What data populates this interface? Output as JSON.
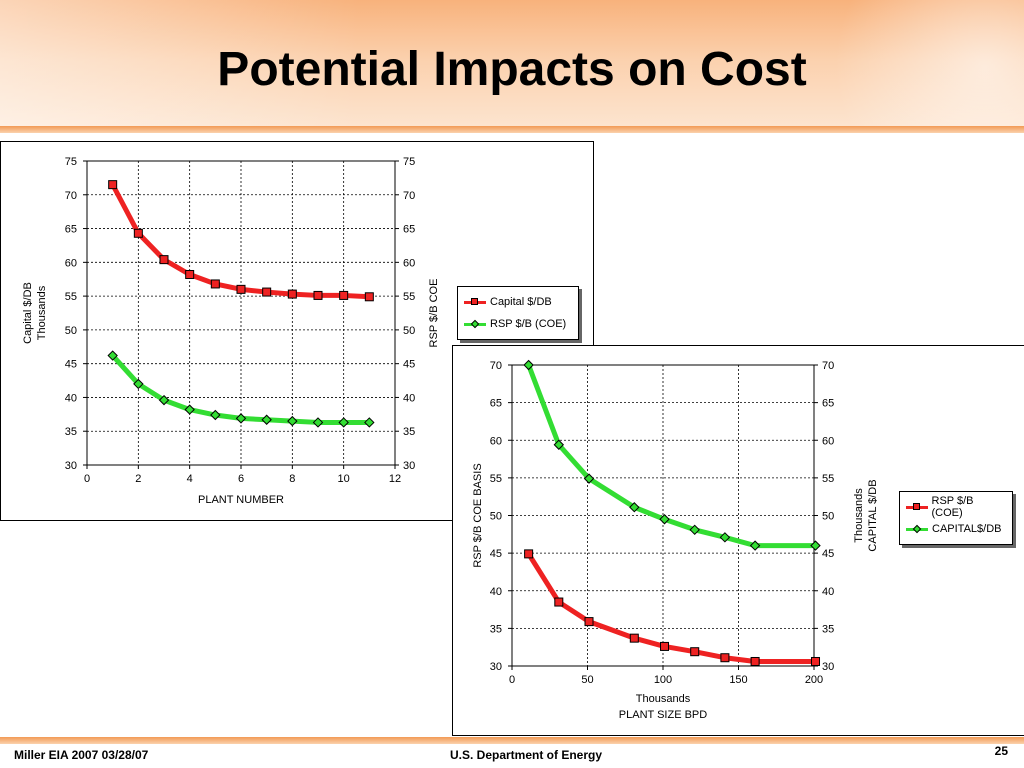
{
  "slide": {
    "title": "Potential Impacts on Cost",
    "footer_left": "Miller  EIA 2007   03/28/07",
    "footer_center": "U.S. Department of Energy",
    "page_number": "25"
  },
  "colors": {
    "red_series": "#ee2222",
    "green_series": "#33dd33",
    "header_orange": "#f8b27c"
  },
  "chart_data": [
    {
      "type": "line",
      "xlabel": "PLANT NUMBER",
      "ylabel_left": "Capital $/DB",
      "ylabel_left_sub": "Thousands",
      "ylabel_right": "RSP $/B COE",
      "xlim": [
        0,
        12
      ],
      "xticks": [
        "0",
        "2",
        "4",
        "6",
        "8",
        "10",
        "12"
      ],
      "ylim_left": [
        30,
        75
      ],
      "ylim_right": [
        30,
        75
      ],
      "yticks_left": [
        "30",
        "35",
        "40",
        "45",
        "50",
        "55",
        "60",
        "65",
        "70",
        "75"
      ],
      "yticks_right": [
        "30",
        "35",
        "40",
        "45",
        "50",
        "55",
        "60",
        "65",
        "70",
        "75"
      ],
      "grid": true,
      "legend_placement": "right",
      "series": [
        {
          "name": "Capital $/DB",
          "marker": "square",
          "color": "#ee2222",
          "x": [
            1,
            2,
            3,
            4,
            5,
            6,
            7,
            8,
            9,
            10,
            11
          ],
          "y": [
            71.5,
            64.3,
            60.4,
            58.2,
            56.8,
            56.0,
            55.6,
            55.3,
            55.1,
            55.1,
            54.9
          ]
        },
        {
          "name": "RSP $/B (COE)",
          "marker": "diamond",
          "color": "#33dd33",
          "x": [
            1,
            2,
            3,
            4,
            5,
            6,
            7,
            8,
            9,
            10,
            11
          ],
          "y": [
            46.2,
            42.0,
            39.6,
            38.2,
            37.4,
            36.9,
            36.7,
            36.5,
            36.3,
            36.3,
            36.3
          ]
        }
      ]
    },
    {
      "type": "line",
      "xlabel": "PLANT SIZE BPD",
      "xlabel_sub": "Thousands",
      "ylabel_left": "RSP $/B COE BASIS",
      "ylabel_right": "CAPITAL $/DB",
      "ylabel_right_sub": "Thousands",
      "xlim": [
        0,
        200
      ],
      "xticks": [
        "0",
        "50",
        "100",
        "150",
        "200"
      ],
      "ylim_left": [
        30,
        70
      ],
      "ylim_right": [
        30,
        70
      ],
      "yticks_left": [
        "30",
        "35",
        "40",
        "45",
        "50",
        "55",
        "60",
        "65",
        "70"
      ],
      "yticks_right": [
        "30",
        "35",
        "40",
        "45",
        "50",
        "55",
        "60",
        "65",
        "70"
      ],
      "grid": true,
      "legend_placement": "right",
      "series": [
        {
          "name": "RSP $/B (COE)",
          "marker": "square",
          "color": "#ee2222",
          "x": [
            11,
            31,
            51,
            81,
            101,
            121,
            141,
            161,
            201
          ],
          "y": [
            44.9,
            38.5,
            35.9,
            33.7,
            32.6,
            31.9,
            31.1,
            30.6,
            30.6
          ]
        },
        {
          "name": "CAPITAL$/DB",
          "marker": "diamond",
          "color": "#33dd33",
          "x": [
            11,
            31,
            51,
            81,
            101,
            121,
            141,
            161,
            201
          ],
          "y": [
            70.0,
            59.4,
            54.9,
            51.1,
            49.5,
            48.1,
            47.1,
            46.0,
            46.0
          ]
        }
      ]
    }
  ]
}
